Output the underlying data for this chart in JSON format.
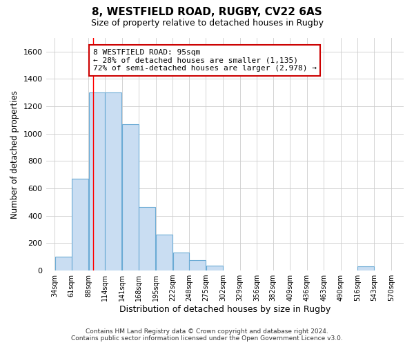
{
  "title_line1": "8, WESTFIELD ROAD, RUGBY, CV22 6AS",
  "title_line2": "Size of property relative to detached houses in Rugby",
  "xlabel": "Distribution of detached houses by size in Rugby",
  "ylabel": "Number of detached properties",
  "bar_color": "#c9ddf2",
  "bar_edge_color": "#6aaad4",
  "background_color": "#ffffff",
  "fig_background_color": "#ffffff",
  "grid_color": "#cccccc",
  "categories": [
    "34sqm",
    "61sqm",
    "88sqm",
    "114sqm",
    "141sqm",
    "168sqm",
    "195sqm",
    "222sqm",
    "248sqm",
    "275sqm",
    "302sqm",
    "329sqm",
    "356sqm",
    "382sqm",
    "409sqm",
    "436sqm",
    "463sqm",
    "490sqm",
    "516sqm",
    "543sqm",
    "570sqm"
  ],
  "bar_lefts": [
    34,
    61,
    88,
    114,
    141,
    168,
    195,
    222,
    248,
    275,
    302,
    329,
    356,
    382,
    409,
    436,
    463,
    490,
    516,
    543
  ],
  "bar_widths": [
    27,
    27,
    26,
    27,
    27,
    27,
    27,
    26,
    27,
    27,
    27,
    27,
    26,
    27,
    27,
    27,
    27,
    26,
    27,
    27
  ],
  "bar_heights": [
    100,
    670,
    1300,
    1300,
    1070,
    465,
    265,
    130,
    75,
    35,
    0,
    0,
    0,
    0,
    0,
    0,
    0,
    0,
    30,
    0
  ],
  "ylim": [
    0,
    1700
  ],
  "xlim": [
    20,
    590
  ],
  "yticks": [
    0,
    200,
    400,
    600,
    800,
    1000,
    1200,
    1400,
    1600
  ],
  "red_line_x": 95,
  "annotation_text": "8 WESTFIELD ROAD: 95sqm\n← 28% of detached houses are smaller (1,135)\n72% of semi-detached houses are larger (2,978) →",
  "annotation_box_color": "#ffffff",
  "annotation_box_edge": "#cc0000",
  "footer_line1": "Contains HM Land Registry data © Crown copyright and database right 2024.",
  "footer_line2": "Contains public sector information licensed under the Open Government Licence v3.0."
}
